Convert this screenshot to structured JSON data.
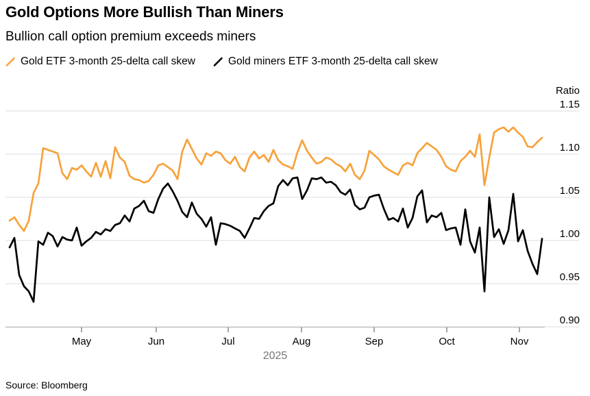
{
  "header": {
    "title": "Gold Options More Bullish Than Miners",
    "subtitle": "Bullion call option premium exceeds miners"
  },
  "legend": {
    "items": [
      {
        "label": "Gold ETF 3-month 25-delta call skew",
        "color": "#F7A23B"
      },
      {
        "label": "Gold miners ETF 3-month 25-delta call skew",
        "color": "#000000"
      }
    ]
  },
  "source": "Source: Bloomberg",
  "chart_data": {
    "type": "line",
    "title": "Gold Options More Bullish Than Miners",
    "subtitle": "Bullion call option premium exceeds miners",
    "ylabel": "Ratio",
    "ylim": [
      0.9,
      1.15
    ],
    "y_ticks": [
      1.15,
      1.1,
      1.05,
      1.0,
      0.95,
      0.9
    ],
    "y_tick_labels": [
      "1.15",
      "1.10",
      "1.05",
      "1.00",
      "0.95",
      "0.90"
    ],
    "x_ticks": [
      "May",
      "Jun",
      "Jul",
      "Aug",
      "Sep",
      "Oct",
      "Nov"
    ],
    "x_axis_year": "2025",
    "x_range": [
      "2025-04-01",
      "2025-11-12"
    ],
    "grid": true,
    "legend_position": "top",
    "series": [
      {
        "name": "Gold ETF 3-month 25-delta call skew",
        "color": "#F7A23B",
        "values": [
          1.023,
          1.027,
          1.018,
          1.011,
          1.023,
          1.055,
          1.066,
          1.107,
          1.105,
          1.103,
          1.101,
          1.078,
          1.071,
          1.084,
          1.082,
          1.087,
          1.08,
          1.074,
          1.09,
          1.074,
          1.092,
          1.072,
          1.108,
          1.096,
          1.091,
          1.075,
          1.071,
          1.07,
          1.067,
          1.069,
          1.076,
          1.087,
          1.089,
          1.085,
          1.081,
          1.071,
          1.103,
          1.117,
          1.106,
          1.095,
          1.088,
          1.101,
          1.098,
          1.103,
          1.101,
          1.093,
          1.089,
          1.097,
          1.085,
          1.08,
          1.096,
          1.103,
          1.095,
          1.099,
          1.091,
          1.105,
          1.093,
          1.088,
          1.086,
          1.083,
          1.102,
          1.116,
          1.104,
          1.096,
          1.089,
          1.091,
          1.096,
          1.094,
          1.089,
          1.086,
          1.08,
          1.089,
          1.076,
          1.071,
          1.081,
          1.104,
          1.099,
          1.094,
          1.086,
          1.082,
          1.079,
          1.076,
          1.087,
          1.09,
          1.087,
          1.101,
          1.107,
          1.113,
          1.109,
          1.105,
          1.097,
          1.086,
          1.082,
          1.08,
          1.092,
          1.097,
          1.104,
          1.097,
          1.123,
          1.064,
          1.096,
          1.125,
          1.129,
          1.131,
          1.126,
          1.131,
          1.125,
          1.12,
          1.109,
          1.108,
          1.114,
          1.119
        ]
      },
      {
        "name": "Gold miners ETF 3-month 25-delta call skew",
        "color": "#000000",
        "values": [
          0.992,
          1.003,
          0.96,
          0.947,
          0.941,
          0.929,
          0.999,
          0.995,
          1.009,
          1.005,
          0.993,
          1.004,
          1.001,
          1.0,
          1.015,
          0.994,
          0.999,
          1.003,
          1.01,
          1.007,
          1.013,
          1.011,
          1.018,
          1.02,
          1.029,
          1.022,
          1.037,
          1.04,
          1.046,
          1.034,
          1.032,
          1.048,
          1.06,
          1.066,
          1.057,
          1.046,
          1.033,
          1.027,
          1.044,
          1.031,
          1.025,
          1.016,
          1.027,
          0.995,
          1.02,
          1.019,
          1.017,
          1.014,
          1.011,
          1.003,
          1.014,
          1.026,
          1.025,
          1.034,
          1.04,
          1.043,
          1.063,
          1.07,
          1.064,
          1.072,
          1.073,
          1.048,
          1.058,
          1.072,
          1.071,
          1.073,
          1.067,
          1.068,
          1.064,
          1.056,
          1.053,
          1.059,
          1.041,
          1.036,
          1.038,
          1.05,
          1.052,
          1.053,
          1.037,
          1.024,
          1.026,
          1.022,
          1.037,
          1.015,
          1.026,
          1.051,
          1.058,
          1.021,
          1.029,
          1.027,
          1.032,
          1.012,
          1.014,
          1.015,
          0.995,
          1.036,
          0.999,
          0.986,
          1.015,
          0.941,
          1.05,
          1.004,
          1.013,
          0.996,
          1.012,
          1.054,
          0.999,
          1.012,
          0.988,
          0.973,
          0.961,
          1.002
        ]
      }
    ]
  }
}
